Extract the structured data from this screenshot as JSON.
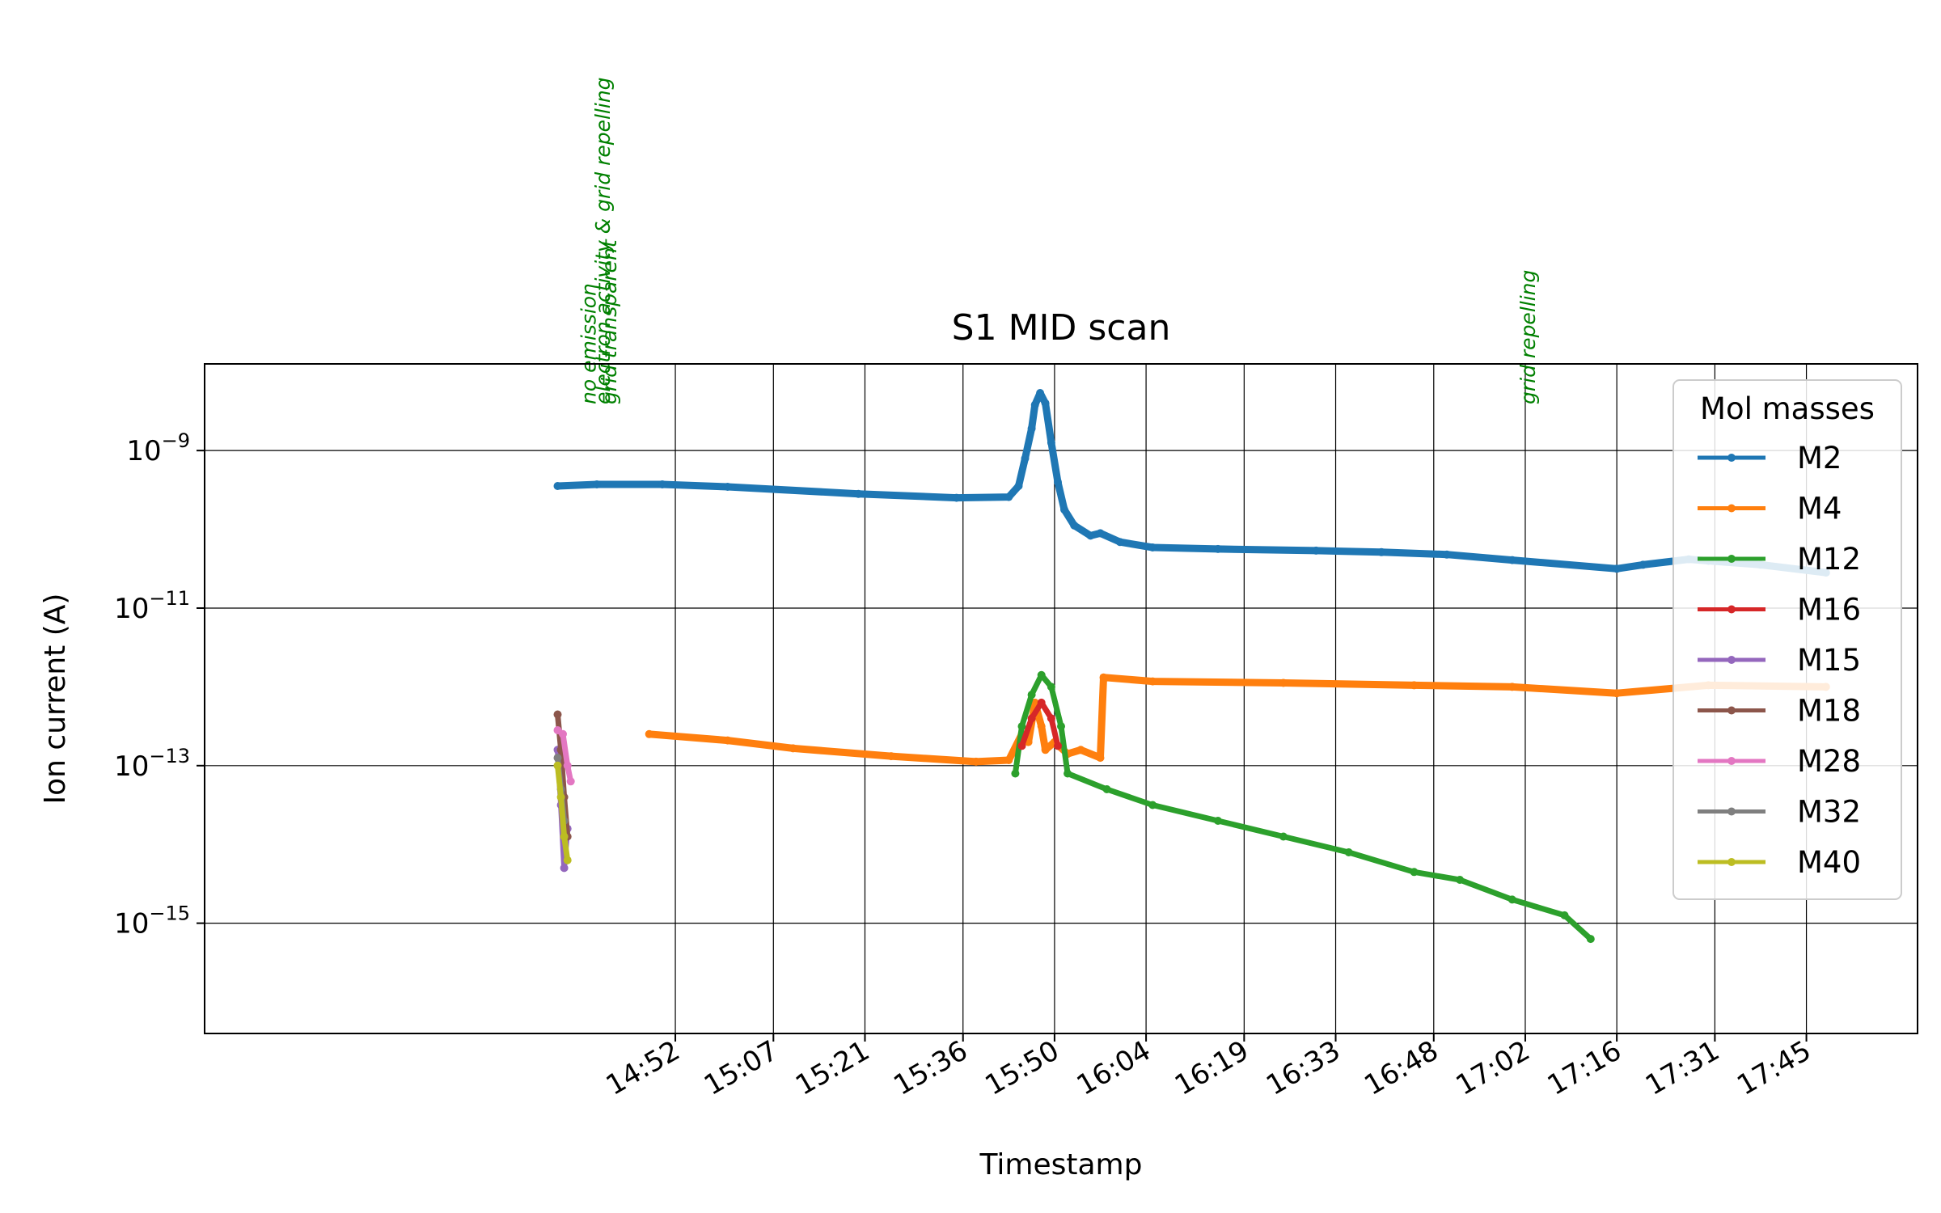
{
  "chart_data": {
    "type": "line",
    "title": "S1 MID scan",
    "xlabel": "Timestamp",
    "ylabel": "Ion current (A)",
    "yscale": "log",
    "ylim_exp": [
      -16.4,
      -7.9
    ],
    "xlim_min": [
      820,
      1082
    ],
    "x_ticks": [
      {
        "min": 892,
        "label": "14:52"
      },
      {
        "min": 907,
        "label": "15:07"
      },
      {
        "min": 921,
        "label": "15:21"
      },
      {
        "min": 936,
        "label": "15:36"
      },
      {
        "min": 950,
        "label": "15:50"
      },
      {
        "min": 964,
        "label": "16:04"
      },
      {
        "min": 979,
        "label": "16:19"
      },
      {
        "min": 993,
        "label": "16:33"
      },
      {
        "min": 1008,
        "label": "16:48"
      },
      {
        "min": 1022,
        "label": "17:02"
      },
      {
        "min": 1036,
        "label": "17:16"
      },
      {
        "min": 1051,
        "label": "17:31"
      },
      {
        "min": 1065,
        "label": "17:45"
      }
    ],
    "y_ticks": [
      {
        "exp": -9,
        "base": "10",
        "sup": "−9"
      },
      {
        "exp": -11,
        "base": "10",
        "sup": "−11"
      },
      {
        "exp": -13,
        "base": "10",
        "sup": "−13"
      },
      {
        "exp": -15,
        "base": "10",
        "sup": "−15"
      }
    ],
    "grid": true,
    "legend": {
      "title": "Mol masses",
      "placement": "right-top"
    },
    "annotations": [
      {
        "min": 878.8,
        "text": "no emission",
        "color": "#008000"
      },
      {
        "min": 881.0,
        "text": "electron activity & grid repelling",
        "color": "#008000"
      },
      {
        "min": 882.0,
        "text": "grid transparent",
        "color": "#008000"
      },
      {
        "min": 1022.5,
        "text": "grid repelling",
        "color": "#008000"
      }
    ],
    "series": [
      {
        "name": "M2",
        "color": "#1f77b4",
        "points": [
          [
            874,
            -9.45
          ],
          [
            880,
            -9.43
          ],
          [
            890,
            -9.43
          ],
          [
            900,
            -9.46
          ],
          [
            920,
            -9.55
          ],
          [
            935,
            -9.6
          ],
          [
            943,
            -9.59
          ],
          [
            944.5,
            -9.45
          ],
          [
            945.5,
            -9.1
          ],
          [
            946.5,
            -8.72
          ],
          [
            947,
            -8.42
          ],
          [
            947.8,
            -8.27
          ],
          [
            948.6,
            -8.4
          ],
          [
            949.5,
            -8.9
          ],
          [
            950.5,
            -9.4
          ],
          [
            951.5,
            -9.75
          ],
          [
            953,
            -9.95
          ],
          [
            955.5,
            -10.08
          ],
          [
            957,
            -10.05
          ],
          [
            960,
            -10.16
          ],
          [
            965,
            -10.23
          ],
          [
            975,
            -10.25
          ],
          [
            990,
            -10.27
          ],
          [
            1000,
            -10.29
          ],
          [
            1010,
            -10.32
          ],
          [
            1020,
            -10.39
          ],
          [
            1036,
            -10.5
          ],
          [
            1040,
            -10.45
          ],
          [
            1047,
            -10.38
          ],
          [
            1050,
            -10.4
          ],
          [
            1058,
            -10.45
          ],
          [
            1068,
            -10.55
          ]
        ]
      },
      {
        "name": "M4",
        "color": "#ff7f0e",
        "points": [
          [
            888,
            -12.6
          ],
          [
            900,
            -12.68
          ],
          [
            910,
            -12.78
          ],
          [
            925,
            -12.88
          ],
          [
            938,
            -12.95
          ],
          [
            943,
            -12.93
          ],
          [
            945,
            -12.6
          ],
          [
            946,
            -12.7
          ],
          [
            947,
            -12.2
          ],
          [
            948,
            -12.5
          ],
          [
            948.6,
            -12.8
          ],
          [
            950,
            -12.7
          ],
          [
            952,
            -12.85
          ],
          [
            954,
            -12.8
          ],
          [
            957,
            -12.9
          ],
          [
            957.5,
            -11.88
          ],
          [
            965,
            -11.93
          ],
          [
            985,
            -11.95
          ],
          [
            1005,
            -11.98
          ],
          [
            1020,
            -12.0
          ],
          [
            1036,
            -12.08
          ],
          [
            1050,
            -11.98
          ],
          [
            1068,
            -12.0
          ]
        ]
      },
      {
        "name": "M12",
        "color": "#2ca02c",
        "points": [
          [
            944,
            -13.1
          ],
          [
            945,
            -12.5
          ],
          [
            946.5,
            -12.1
          ],
          [
            948,
            -11.85
          ],
          [
            949.5,
            -12.0
          ],
          [
            951,
            -12.5
          ],
          [
            952,
            -13.1
          ],
          [
            958,
            -13.3
          ],
          [
            965,
            -13.5
          ],
          [
            975,
            -13.7
          ],
          [
            985,
            -13.9
          ],
          [
            995,
            -14.1
          ],
          [
            1005,
            -14.35
          ],
          [
            1012,
            -14.45
          ],
          [
            1020,
            -14.7
          ],
          [
            1028,
            -14.9
          ],
          [
            1032,
            -15.2
          ]
        ]
      },
      {
        "name": "M16",
        "color": "#d62728",
        "points": [
          [
            945,
            -12.75
          ],
          [
            946.5,
            -12.4
          ],
          [
            948,
            -12.2
          ],
          [
            949.5,
            -12.4
          ],
          [
            950.5,
            -12.75
          ]
        ]
      },
      {
        "name": "M15",
        "color": "#9467bd",
        "points": [
          [
            874,
            -12.8
          ],
          [
            874.5,
            -13.5
          ],
          [
            875,
            -14.3
          ],
          [
            875.5,
            -13.8
          ]
        ]
      },
      {
        "name": "M18",
        "color": "#8c564b",
        "points": [
          [
            874,
            -12.35
          ],
          [
            874.5,
            -12.8
          ],
          [
            875,
            -13.4
          ],
          [
            875.5,
            -13.9
          ]
        ]
      },
      {
        "name": "M28",
        "color": "#e377c2",
        "points": [
          [
            874,
            -12.55
          ],
          [
            874.8,
            -12.6
          ],
          [
            875.5,
            -13.0
          ],
          [
            876,
            -13.2
          ]
        ]
      },
      {
        "name": "M32",
        "color": "#7f7f7f",
        "points": [
          [
            874,
            -12.9
          ],
          [
            874.5,
            -13.3
          ],
          [
            875,
            -13.7
          ]
        ]
      },
      {
        "name": "M40",
        "color": "#bcbd22",
        "points": [
          [
            874,
            -13.0
          ],
          [
            874.5,
            -13.4
          ],
          [
            875,
            -13.9
          ],
          [
            875.5,
            -14.2
          ]
        ]
      }
    ]
  }
}
